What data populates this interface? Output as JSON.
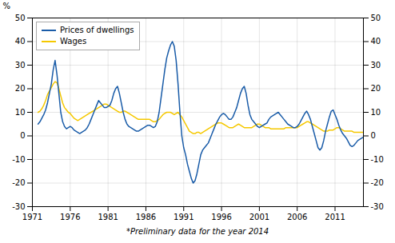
{
  "chart_data": {
    "type": "line",
    "footnote": "*Preliminary data for the year 2014",
    "ylabel": "%",
    "xlim": [
      1971,
      2014.75
    ],
    "xticks": [
      1971,
      1976,
      1981,
      1986,
      1991,
      1996,
      2001,
      2006,
      2011
    ],
    "ylim": [
      -30,
      50
    ],
    "yticks": [
      -30,
      -20,
      -10,
      0,
      10,
      20,
      30,
      40,
      50
    ],
    "grid": true,
    "legend": "upper left",
    "x": [
      1971.75,
      1972,
      1972.25,
      1972.5,
      1972.75,
      1973,
      1973.25,
      1973.5,
      1973.75,
      1974,
      1974.25,
      1974.5,
      1974.75,
      1975,
      1975.25,
      1975.5,
      1975.75,
      1976,
      1976.25,
      1976.5,
      1976.75,
      1977,
      1977.25,
      1977.5,
      1977.75,
      1978,
      1978.25,
      1978.5,
      1978.75,
      1979,
      1979.25,
      1979.5,
      1979.75,
      1980,
      1980.25,
      1980.5,
      1980.75,
      1981,
      1981.25,
      1981.5,
      1981.75,
      1982,
      1982.25,
      1982.5,
      1982.75,
      1983,
      1983.25,
      1983.5,
      1983.75,
      1984,
      1984.25,
      1984.5,
      1984.75,
      1985,
      1985.25,
      1985.5,
      1985.75,
      1986,
      1986.25,
      1986.5,
      1986.75,
      1987,
      1987.25,
      1987.5,
      1987.75,
      1988,
      1988.25,
      1988.5,
      1988.75,
      1989,
      1989.25,
      1989.5,
      1989.75,
      1990,
      1990.25,
      1990.5,
      1990.75,
      1991,
      1991.25,
      1991.5,
      1991.75,
      1992,
      1992.25,
      1992.5,
      1992.75,
      1993,
      1993.25,
      1993.5,
      1993.75,
      1994,
      1994.25,
      1994.5,
      1994.75,
      1995,
      1995.25,
      1995.5,
      1995.75,
      1996,
      1996.25,
      1996.5,
      1996.75,
      1997,
      1997.25,
      1997.5,
      1997.75,
      1998,
      1998.25,
      1998.5,
      1998.75,
      1999,
      1999.25,
      1999.5,
      1999.75,
      2000,
      2000.25,
      2000.5,
      2000.75,
      2001,
      2001.25,
      2001.5,
      2001.75,
      2002,
      2002.25,
      2002.5,
      2002.75,
      2003,
      2003.25,
      2003.5,
      2003.75,
      2004,
      2004.25,
      2004.5,
      2004.75,
      2005,
      2005.25,
      2005.5,
      2005.75,
      2006,
      2006.25,
      2006.5,
      2006.75,
      2007,
      2007.25,
      2007.5,
      2007.75,
      2008,
      2008.25,
      2008.5,
      2008.75,
      2009,
      2009.25,
      2009.5,
      2009.75,
      2010,
      2010.25,
      2010.5,
      2010.75,
      2011,
      2011.25,
      2011.5,
      2011.75,
      2012,
      2012.25,
      2012.5,
      2012.75,
      2013,
      2013.25,
      2013.5,
      2013.75,
      2014,
      2014.25,
      2014.5,
      2014.75
    ],
    "series": [
      {
        "name": "Prices of dwellings",
        "color": "#1a5ca8",
        "values": [
          5,
          6,
          7.5,
          9,
          11,
          14,
          18,
          22,
          28,
          32,
          26,
          18,
          10,
          6,
          4,
          3,
          3.5,
          4,
          3.5,
          2.5,
          2,
          1.5,
          1,
          1.5,
          2,
          2.5,
          3.5,
          5,
          7,
          9,
          11,
          13,
          15,
          14,
          13,
          12,
          12,
          12.5,
          13,
          15,
          18,
          20,
          21,
          18,
          14,
          10,
          7,
          5,
          4,
          3.5,
          3,
          2.5,
          2,
          2,
          2.5,
          3,
          3.5,
          4,
          4.5,
          4.5,
          4,
          3.5,
          4,
          6,
          10,
          16,
          22,
          28,
          33,
          36,
          38.5,
          40,
          38,
          32,
          22,
          10,
          0,
          -5,
          -8,
          -12,
          -15,
          -18,
          -20,
          -19,
          -16,
          -12,
          -8,
          -6,
          -5,
          -4,
          -3,
          -1,
          1,
          3,
          5,
          6.5,
          8,
          9,
          9.5,
          9,
          8,
          7,
          7,
          8,
          10,
          12,
          15,
          18,
          20,
          21,
          18,
          13,
          9,
          7,
          6,
          5,
          4,
          3.5,
          4,
          4.5,
          5,
          5.5,
          7,
          8,
          8.5,
          9,
          9.5,
          10,
          9,
          8,
          7,
          6,
          5,
          4.5,
          4,
          3.5,
          3.5,
          4,
          5,
          6.5,
          8,
          9.5,
          10.5,
          9,
          7,
          4,
          1,
          -2,
          -5,
          -6,
          -5,
          -2,
          2,
          5,
          8,
          10.5,
          11,
          9,
          7,
          4.5,
          2.5,
          1,
          0,
          -1,
          -2.5,
          -4,
          -4.5,
          -4,
          -3,
          -2,
          -1.5,
          -1,
          -0.5
        ]
      },
      {
        "name": "Wages",
        "color": "#f5c800",
        "values": [
          10,
          10.5,
          11.5,
          13,
          15,
          17.5,
          19,
          20.5,
          22,
          23,
          22.5,
          20,
          17,
          14,
          12,
          11,
          10,
          9.5,
          8.5,
          7.5,
          7,
          6.5,
          7,
          7.5,
          8,
          8.5,
          9,
          9.5,
          10,
          10.5,
          11,
          11.5,
          12,
          12.5,
          13,
          13.5,
          13.5,
          13,
          12.5,
          12,
          11.5,
          11,
          10.5,
          10,
          10,
          10.5,
          10.5,
          10,
          9.5,
          9,
          8.5,
          8,
          7.5,
          7,
          7,
          7,
          7,
          7,
          7,
          7,
          6.5,
          6,
          6,
          6.5,
          7,
          8,
          9,
          9.5,
          10,
          10,
          10,
          9.5,
          9,
          9.5,
          10,
          9,
          8,
          6.5,
          5,
          3.5,
          2,
          1.5,
          1,
          1,
          1.5,
          1.5,
          1,
          1.5,
          2,
          2.5,
          3,
          3.5,
          4,
          4.5,
          5,
          5.5,
          5.5,
          5.5,
          5,
          4.5,
          4,
          3.5,
          3.5,
          3.5,
          4,
          4.5,
          5,
          4.5,
          4,
          3.5,
          3.5,
          3.5,
          3.5,
          3.5,
          4,
          4.5,
          5,
          5,
          4.5,
          4,
          3.5,
          3.5,
          3.5,
          3,
          3,
          3,
          3,
          3,
          3,
          3,
          3,
          3.5,
          3.5,
          3.5,
          3.5,
          3.5,
          3.5,
          3.5,
          4,
          4.5,
          5,
          5.5,
          6,
          6,
          5.5,
          5,
          4.5,
          4,
          3.5,
          3,
          2.5,
          2,
          2,
          2,
          2.5,
          2.5,
          2.5,
          3,
          3.5,
          3.5,
          3,
          2.5,
          2,
          2,
          2,
          2,
          2,
          1.5,
          1.5,
          1.5,
          1.5,
          1.5,
          1.5
        ]
      }
    ]
  }
}
